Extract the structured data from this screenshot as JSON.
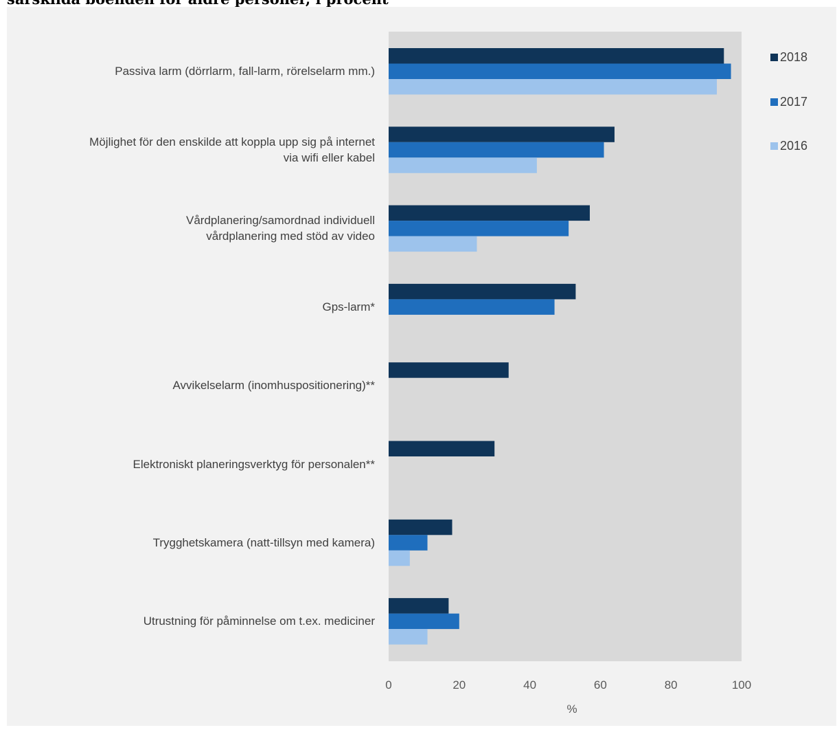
{
  "title": "särskilda boenden för äldre personer, i procent",
  "colors": {
    "s2018": "#0f3458",
    "s2017": "#1f6ebd",
    "s2016": "#9dc3ec",
    "plot_bg": "#d9d9d9",
    "panel_bg": "#f2f2f2"
  },
  "chart_data": {
    "type": "bar",
    "orientation": "horizontal",
    "title": "särskilda boenden för äldre personer, i procent",
    "xlabel": "%",
    "ylabel": "",
    "xlim": [
      0,
      100
    ],
    "x_ticks": [
      "0",
      "20",
      "40",
      "60",
      "80",
      "100"
    ],
    "grid": false,
    "legend_position": "right",
    "categories": [
      [
        "Passiva larm (dörrlarm, fall-larm, rörelselarm mm.)"
      ],
      [
        "Möjlighet för den enskilde att koppla upp sig på internet",
        "via wifi eller kabel"
      ],
      [
        "Vårdplanering/samordnad individuell",
        "vårdplanering med stöd av video"
      ],
      [
        "Gps-larm*"
      ],
      [
        "Avvikelselarm (inomhuspositionering)**"
      ],
      [
        "Elektroniskt planeringsverktyg för personalen**"
      ],
      [
        "Trygghetskamera (natt-tillsyn med kamera)"
      ],
      [
        "Utrustning för påminnelse om t.ex. mediciner"
      ]
    ],
    "series": [
      {
        "name": "2018",
        "values": [
          95,
          64,
          57,
          53,
          34,
          30,
          18,
          17
        ]
      },
      {
        "name": "2017",
        "values": [
          97,
          61,
          51,
          47,
          null,
          null,
          11,
          20
        ]
      },
      {
        "name": "2016",
        "values": [
          93,
          42,
          25,
          null,
          null,
          null,
          6,
          11
        ]
      }
    ]
  }
}
